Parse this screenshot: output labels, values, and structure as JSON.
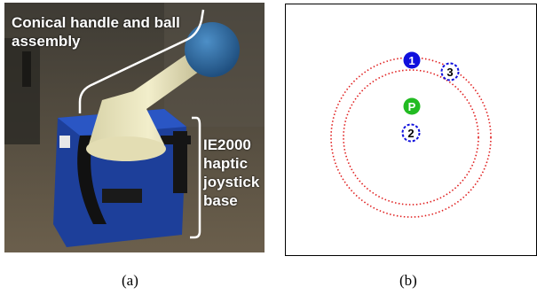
{
  "panel_a": {
    "caption": "(a)",
    "handle_label": "Conical handle and ball assembly",
    "base_label_lines": [
      "IE2000",
      "haptic",
      "joystick",
      "base"
    ]
  },
  "panel_b": {
    "caption": "(b)",
    "markers": [
      {
        "label": "1",
        "style": "solid",
        "color": "#1010dd"
      },
      {
        "label": "P",
        "style": "solid",
        "color": "#22bb22"
      },
      {
        "label": "2",
        "style": "dashed",
        "color": "#1010dd"
      },
      {
        "label": "3",
        "style": "dashed",
        "color": "#1010dd"
      }
    ],
    "ring_color": "#e02020"
  }
}
